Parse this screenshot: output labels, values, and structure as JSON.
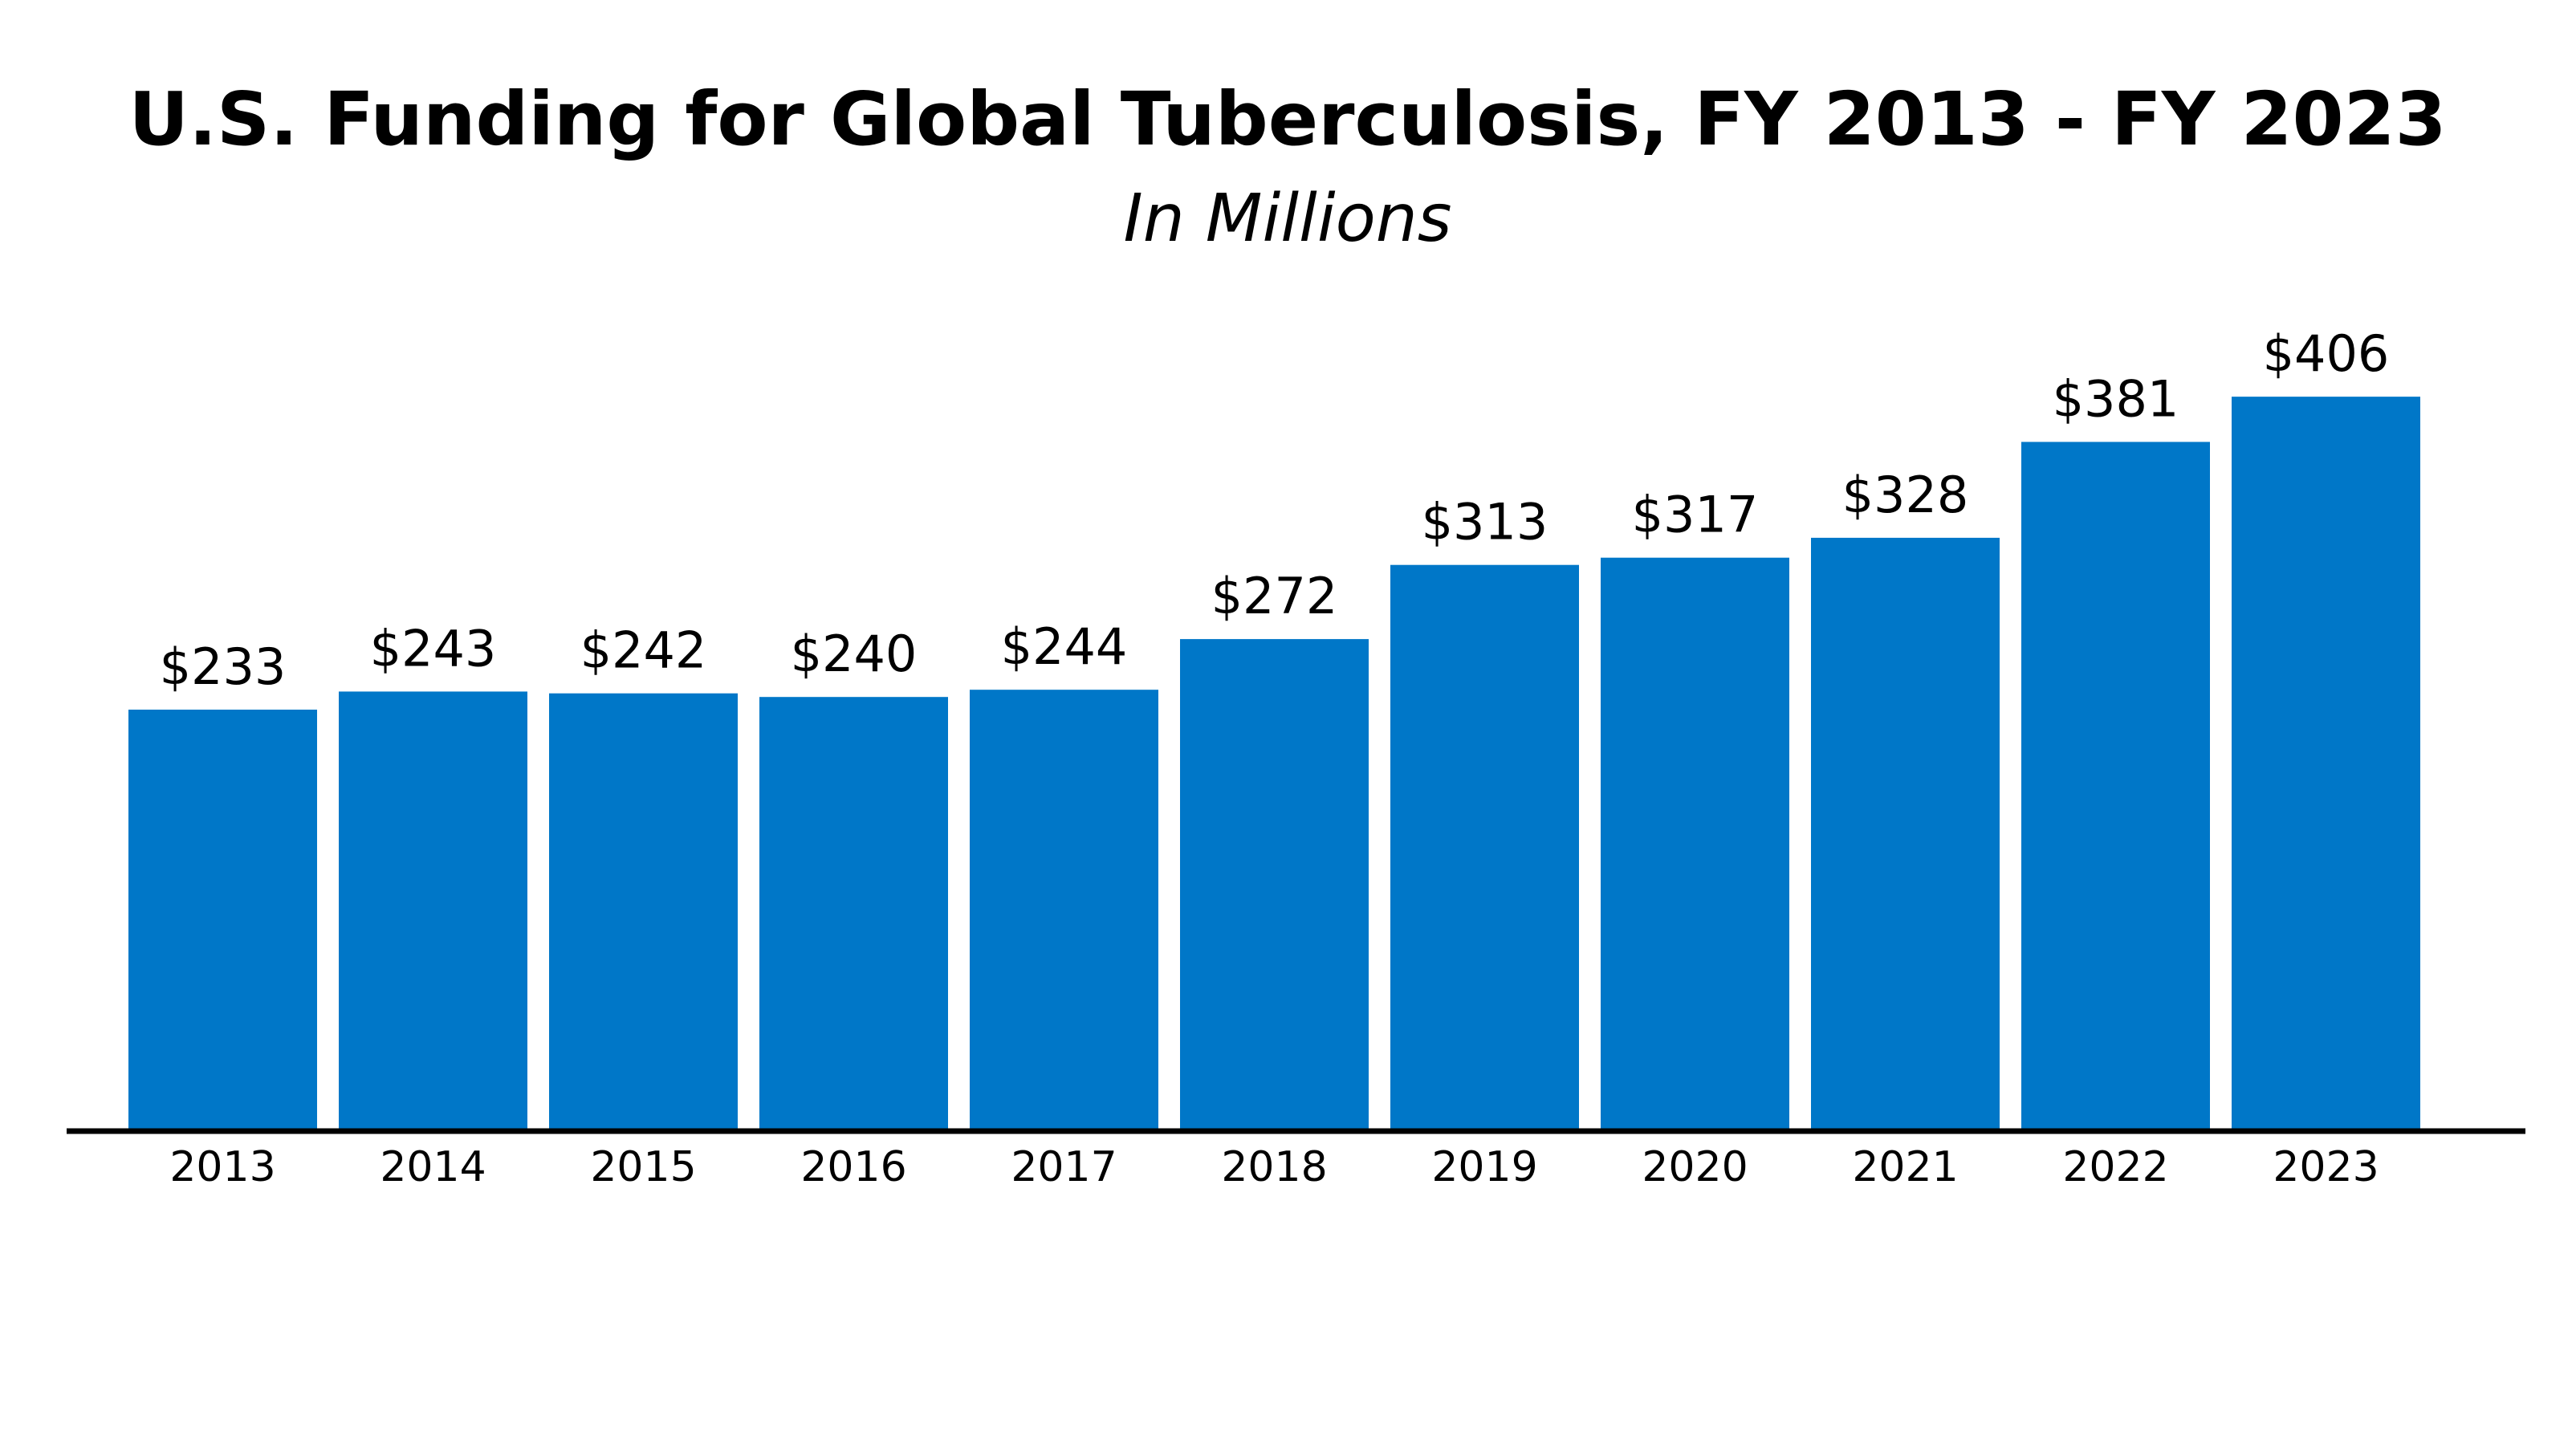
{
  "chart_data": {
    "type": "bar",
    "title": "U.S. Funding for Global Tuberculosis, FY 2013 - FY 2023",
    "subtitle": "In Millions",
    "xlabel": "",
    "ylabel": "",
    "categories": [
      "2013",
      "2014",
      "2015",
      "2016",
      "2017",
      "2018",
      "2019",
      "2020",
      "2021",
      "2022",
      "2023"
    ],
    "values": [
      233,
      243,
      242,
      240,
      244,
      272,
      313,
      317,
      328,
      381,
      406
    ],
    "value_labels": [
      "$233",
      "$243",
      "$242",
      "$240",
      "$244",
      "$272",
      "$313",
      "$317",
      "$328",
      "$381",
      "$406"
    ],
    "ylim": [
      0,
      450
    ],
    "grid": false,
    "legend": "none",
    "bar_color": "#0077c8",
    "axis_color": "#000000",
    "text_color": "#000000"
  }
}
